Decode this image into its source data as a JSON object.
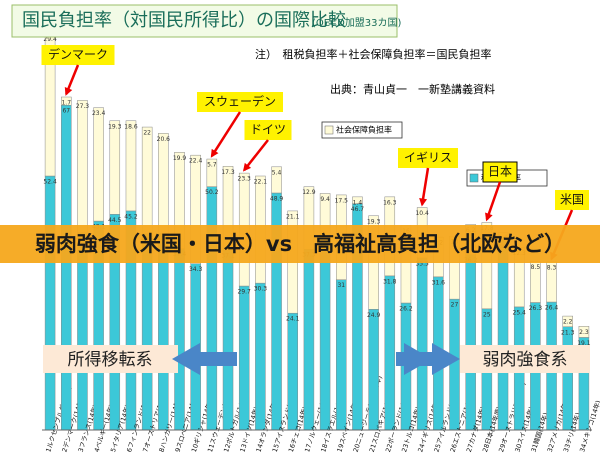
{
  "chart_data": {
    "type": "stacked-bar",
    "title": "国民負担率（対国民所得比）の国際比較",
    "subtitle": "(OECD加盟33カ国)",
    "note": "注）　租税負担率＋社会保障負担率＝国民負担率",
    "source": "出典：青山貞一　一新塾講義資料",
    "banner": "弱肉強食（米国・日本）vs　高福祉高負担（北欧など）",
    "left_arrow": "所得移転系",
    "right_arrow": "弱肉強食系",
    "callouts": [
      "デンマーク",
      "スウェーデン",
      "ドイツ",
      "イギリス",
      "日本",
      "米国"
    ],
    "categories": [
      "1ルクセンブルグ(14年)",
      "2デンマーク(14年)",
      "3フランス(14年)",
      "4ベルギー(14年)",
      "5イタリア(14年)",
      "6フィンランド(14年)",
      "7オーストリア(14年)",
      "8ハンガリー(14年)",
      "9スロベニア(14年)",
      "10ギリシャ(14年)",
      "11スウェーデン(14年)",
      "12ポルトガル(14年)",
      "13ドイツ(14年)",
      "14オランダ(14年)",
      "15アイスランド(14年)",
      "16チェコ(14年)",
      "17ノルウェー(14年)",
      "18イスラエル(14年)",
      "19スペイン(14年)",
      "20ニュージーランド(14年)",
      "21スロバキア(14年)",
      "22ポーランド(14年)",
      "23トルコ(14年)",
      "24イギリス(14年)",
      "25アイルランド(14年)",
      "26エストニア(14年)",
      "27カナダ(14年)",
      "28日本(14年度)",
      "29オーストラリア(13年)",
      "30スイス(14年)",
      "31韓国(14年)",
      "32アメリカ(14年)",
      "33チリ(14年)",
      "34メキシコ(14年)"
    ],
    "series": [
      {
        "name": "租税負担率",
        "color": "#3cc8d8",
        "values": [
          52.4,
          67.0,
          40.7,
          43.1,
          44.5,
          45.2,
          40.5,
          40.6,
          37.4,
          34.3,
          50.2,
          37.1,
          29.7,
          30.3,
          48.9,
          24.1,
          37.3,
          39.4,
          31.0,
          46.7,
          24.9,
          31.8,
          26.2,
          35.5,
          31.6,
          27.0,
          36.2,
          25.0,
          39.1,
          25.4,
          26.3,
          26.4,
          21.3,
          19.1
        ]
      },
      {
        "name": "社会保障負担率",
        "color": "#fffbd8",
        "values": [
          29.4,
          1.7,
          27.3,
          23.4,
          19.3,
          18.6,
          22.0,
          20.6,
          19.9,
          22.4,
          5.7,
          17.3,
          23.3,
          22.1,
          5.4,
          21.1,
          12.9,
          9.4,
          17.5,
          1.4,
          19.3,
          16.3,
          16.0,
          10.4,
          8.2,
          13.0,
          6.2,
          17.8,
          1.6,
          12.3,
          8.5,
          8.3,
          2.2,
          2.3
        ]
      }
    ],
    "ylim": [
      0,
      85
    ]
  }
}
